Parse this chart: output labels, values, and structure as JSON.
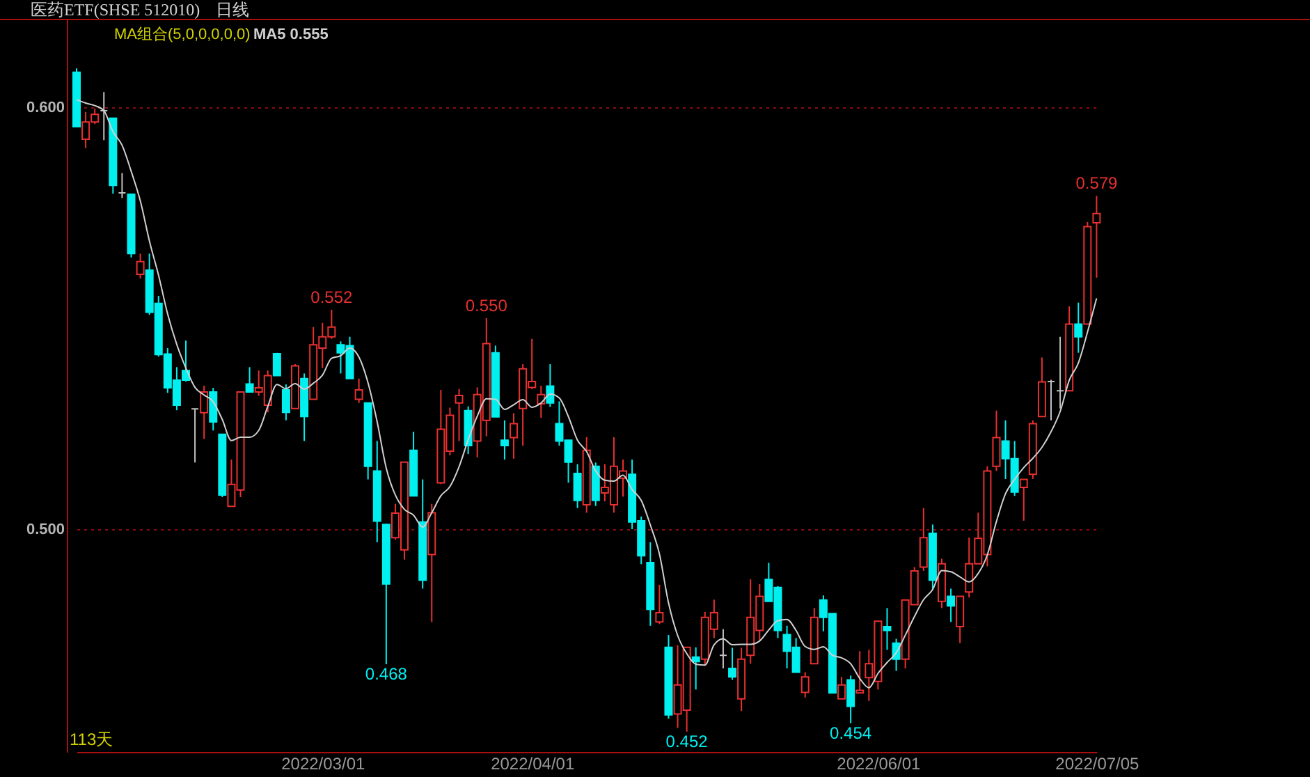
{
  "chart_data": {
    "type": "candlestick",
    "title": "医药ETF(SHSE 512010)",
    "subtitle": "日线",
    "legend_title": "MA组合(5,0,0,0,0,0)",
    "legend": "top left",
    "grid": "y",
    "ylim": [
      0.4472,
      0.6208
    ],
    "yticks": [
      {
        "value": 0.6,
        "label": "0.600"
      },
      {
        "value": 0.5,
        "label": "0.500"
      }
    ],
    "categories": [
      null,
      null,
      null,
      null,
      null,
      null,
      null,
      null,
      null,
      null,
      null,
      null,
      null,
      null,
      null,
      null,
      null,
      null,
      null,
      null,
      null,
      null,
      null,
      null,
      null,
      null,
      null,
      "2022/03/01",
      null,
      null,
      null,
      null,
      null,
      null,
      null,
      null,
      null,
      null,
      null,
      null,
      null,
      null,
      null,
      null,
      null,
      null,
      null,
      null,
      null,
      null,
      "2022/04/01",
      null,
      null,
      null,
      null,
      null,
      null,
      null,
      null,
      null,
      null,
      null,
      null,
      null,
      null,
      null,
      null,
      null,
      null,
      null,
      null,
      null,
      null,
      null,
      null,
      null,
      null,
      null,
      null,
      null,
      null,
      null,
      null,
      null,
      null,
      null,
      null,
      null,
      "2022/06/01",
      null,
      null,
      null,
      null,
      null,
      null,
      null,
      null,
      null,
      null,
      null,
      null,
      null,
      null,
      null,
      null,
      null,
      null,
      null,
      null,
      null,
      null,
      null,
      "2022/07/05"
    ],
    "ohlc": [
      [
        0.6083,
        0.6092,
        0.5954,
        0.5954
      ],
      [
        0.5924,
        0.5989,
        0.5903,
        0.5965
      ],
      [
        0.5965,
        0.5997,
        0.596,
        0.5983
      ],
      [
        0.5992,
        0.6036,
        0.5922,
        0.5992
      ],
      [
        0.5974,
        0.5974,
        0.5795,
        0.5815
      ],
      [
        0.5797,
        0.5844,
        0.5785,
        0.5797
      ],
      [
        0.5794,
        0.5794,
        0.5644,
        0.5653
      ],
      [
        0.5604,
        0.5653,
        0.5594,
        0.5634
      ],
      [
        0.5614,
        0.5653,
        0.5508,
        0.5514
      ],
      [
        0.5535,
        0.5553,
        0.5409,
        0.5414
      ],
      [
        0.5415,
        0.5429,
        0.5323,
        0.5335
      ],
      [
        0.5353,
        0.5384,
        0.5282,
        0.5294
      ],
      [
        0.5376,
        0.5447,
        0.535,
        0.5353
      ],
      [
        0.5285,
        0.5285,
        0.5158,
        0.5285
      ],
      [
        0.5276,
        0.534,
        0.5214,
        0.5325
      ],
      [
        0.5325,
        0.5335,
        0.5234,
        0.5254
      ],
      [
        0.5225,
        0.5225,
        0.5076,
        0.5081
      ],
      [
        0.5054,
        0.5165,
        0.5054,
        0.5106
      ],
      [
        0.5093,
        0.5326,
        0.5076,
        0.5325
      ],
      [
        0.5344,
        0.5384,
        0.5325,
        0.5325
      ],
      [
        0.5325,
        0.5376,
        0.5316,
        0.5335
      ],
      [
        0.5294,
        0.5376,
        0.5277,
        0.5364
      ],
      [
        0.5416,
        0.5418,
        0.5364,
        0.5364
      ],
      [
        0.533,
        0.5343,
        0.5258,
        0.5277
      ],
      [
        0.5286,
        0.5391,
        0.5286,
        0.5387
      ],
      [
        0.5357,
        0.5369,
        0.5209,
        0.5267
      ],
      [
        0.5308,
        0.5479,
        0.5308,
        0.5437
      ],
      [
        0.5429,
        0.5489,
        0.5382,
        0.5456
      ],
      [
        0.5456,
        0.552,
        0.5451,
        0.5479
      ],
      [
        0.5437,
        0.5445,
        0.5369,
        0.5418
      ],
      [
        0.5435,
        0.5456,
        0.5357,
        0.5357
      ],
      [
        0.5308,
        0.5357,
        0.5299,
        0.533
      ],
      [
        0.5299,
        0.5299,
        0.5118,
        0.5149
      ],
      [
        0.5138,
        0.5209,
        0.4969,
        0.5019
      ],
      [
        0.5011,
        0.5013,
        0.468,
        0.487
      ],
      [
        0.498,
        0.506,
        0.4975,
        0.5038
      ],
      [
        0.4951,
        0.5159,
        0.4928,
        0.5159
      ],
      [
        0.5187,
        0.5231,
        0.5079,
        0.5079
      ],
      [
        0.5017,
        0.5118,
        0.4859,
        0.4879
      ],
      [
        0.494,
        0.506,
        0.478,
        0.5039
      ],
      [
        0.511,
        0.533,
        0.5107,
        0.5237
      ],
      [
        0.5185,
        0.5288,
        0.5175,
        0.527
      ],
      [
        0.5299,
        0.5332,
        0.5209,
        0.5317
      ],
      [
        0.5281,
        0.5291,
        0.5178,
        0.5198
      ],
      [
        0.5209,
        0.5336,
        0.517,
        0.5319
      ],
      [
        0.5258,
        0.55,
        0.522,
        0.544
      ],
      [
        0.5418,
        0.5435,
        0.5266,
        0.5266
      ],
      [
        0.5211,
        0.5258,
        0.5165,
        0.5198
      ],
      [
        0.5217,
        0.5275,
        0.5167,
        0.525
      ],
      [
        0.5286,
        0.5391,
        0.5198,
        0.538
      ],
      [
        0.5336,
        0.5451,
        0.5332,
        0.535
      ],
      [
        0.5297,
        0.534,
        0.5264,
        0.5319
      ],
      [
        0.5339,
        0.5391,
        0.529,
        0.5299
      ],
      [
        0.525,
        0.5303,
        0.5198,
        0.5209
      ],
      [
        0.5211,
        0.5211,
        0.511,
        0.5159
      ],
      [
        0.5132,
        0.5154,
        0.505,
        0.5068
      ],
      [
        0.5058,
        0.5218,
        0.5039,
        0.5187
      ],
      [
        0.5149,
        0.5158,
        0.5055,
        0.5068
      ],
      [
        0.5086,
        0.5154,
        0.5066,
        0.5099
      ],
      [
        0.5058,
        0.5218,
        0.5039,
        0.5149
      ],
      [
        0.5121,
        0.5165,
        0.5077,
        0.5138
      ],
      [
        0.513,
        0.5165,
        0.5,
        0.5017
      ],
      [
        0.502,
        0.503,
        0.4917,
        0.4937
      ],
      [
        0.4921,
        0.4969,
        0.4771,
        0.481
      ],
      [
        0.478,
        0.4868,
        0.4775,
        0.4802
      ],
      [
        0.472,
        0.4749,
        0.4551,
        0.456
      ],
      [
        0.4562,
        0.4725,
        0.4529,
        0.4631
      ],
      [
        0.4571,
        0.472,
        0.452,
        0.472
      ],
      [
        0.4697,
        0.472,
        0.462,
        0.4686
      ],
      [
        0.4692,
        0.4804,
        0.4676,
        0.4791
      ],
      [
        0.4763,
        0.4833,
        0.4742,
        0.4802
      ],
      [
        0.4701,
        0.4763,
        0.467,
        0.4701
      ],
      [
        0.467,
        0.4719,
        0.4643,
        0.465
      ],
      [
        0.4598,
        0.4719,
        0.4569,
        0.4692
      ],
      [
        0.4701,
        0.4881,
        0.4681,
        0.4791
      ],
      [
        0.476,
        0.487,
        0.4737,
        0.4841
      ],
      [
        0.4881,
        0.492,
        0.4829,
        0.4829
      ],
      [
        0.4862,
        0.4865,
        0.4742,
        0.476
      ],
      [
        0.475,
        0.4771,
        0.467,
        0.4711
      ],
      [
        0.472,
        0.4742,
        0.4661,
        0.4661
      ],
      [
        0.4613,
        0.4661,
        0.4601,
        0.465
      ],
      [
        0.4681,
        0.4813,
        0.4681,
        0.4791
      ],
      [
        0.4832,
        0.4843,
        0.4758,
        0.4791
      ],
      [
        0.48,
        0.48,
        0.4612,
        0.4612
      ],
      [
        0.4598,
        0.465,
        0.4598,
        0.4631
      ],
      [
        0.4643,
        0.4653,
        0.454,
        0.458
      ],
      [
        0.4612,
        0.4711,
        0.4612,
        0.4618
      ],
      [
        0.4648,
        0.4714,
        0.4593,
        0.4681
      ],
      [
        0.4639,
        0.4782,
        0.462,
        0.4782
      ],
      [
        0.4769,
        0.4813,
        0.4714,
        0.476
      ],
      [
        0.473,
        0.474,
        0.4664,
        0.4692
      ],
      [
        0.4692,
        0.4832,
        0.467,
        0.4832
      ],
      [
        0.4821,
        0.491,
        0.4821,
        0.4901
      ],
      [
        0.491,
        0.505,
        0.4901,
        0.498
      ],
      [
        0.499,
        0.5011,
        0.4857,
        0.4879
      ],
      [
        0.4829,
        0.493,
        0.4813,
        0.4918
      ],
      [
        0.4841,
        0.4859,
        0.478,
        0.4818
      ],
      [
        0.4769,
        0.4841,
        0.473,
        0.4841
      ],
      [
        0.4851,
        0.498,
        0.4838,
        0.4918
      ],
      [
        0.4918,
        0.5039,
        0.4918,
        0.4978
      ],
      [
        0.494,
        0.5149,
        0.4912,
        0.5138
      ],
      [
        0.5149,
        0.5281,
        0.5138,
        0.5217
      ],
      [
        0.5209,
        0.5258,
        0.5119,
        0.5167
      ],
      [
        0.5167,
        0.5209,
        0.5079,
        0.5088
      ],
      [
        0.5099,
        0.5118,
        0.502,
        0.5118
      ],
      [
        0.513,
        0.5258,
        0.5119,
        0.525
      ],
      [
        0.5267,
        0.5407,
        0.5267,
        0.5349
      ],
      [
        0.535,
        0.5354,
        0.5258,
        0.535
      ],
      [
        0.5328,
        0.5456,
        0.5286,
        0.5328
      ],
      [
        0.5328,
        0.5528,
        0.5328,
        0.5486
      ],
      [
        0.5486,
        0.5537,
        0.5418,
        0.5456
      ],
      [
        0.5486,
        0.5728,
        0.5486,
        0.5717
      ],
      [
        0.5726,
        0.579,
        0.5596,
        0.5748
      ]
    ],
    "colors": [
      "#00f0f0",
      "#e83030",
      "#e83030",
      "#c0c0c0",
      "#00f0f0",
      "#c0c0c0",
      "#00f0f0",
      "#e83030",
      "#00f0f0",
      "#00f0f0",
      "#00f0f0",
      "#00f0f0",
      "#00f0f0",
      "#c0c0c0",
      "#e83030",
      "#00f0f0",
      "#00f0f0",
      "#e83030",
      "#e83030",
      "#00f0f0",
      "#e83030",
      "#e83030",
      "#00f0f0",
      "#00f0f0",
      "#e83030",
      "#00f0f0",
      "#e83030",
      "#e83030",
      "#e83030",
      "#00f0f0",
      "#00f0f0",
      "#e83030",
      "#00f0f0",
      "#00f0f0",
      "#00f0f0",
      "#e83030",
      "#e83030",
      "#00f0f0",
      "#00f0f0",
      "#e83030",
      "#e83030",
      "#e83030",
      "#e83030",
      "#00f0f0",
      "#e83030",
      "#e83030",
      "#00f0f0",
      "#00f0f0",
      "#e83030",
      "#e83030",
      "#e83030",
      "#e83030",
      "#00f0f0",
      "#00f0f0",
      "#00f0f0",
      "#00f0f0",
      "#e83030",
      "#00f0f0",
      "#e83030",
      "#e83030",
      "#e83030",
      "#00f0f0",
      "#00f0f0",
      "#00f0f0",
      "#e83030",
      "#00f0f0",
      "#e83030",
      "#e83030",
      "#00f0f0",
      "#e83030",
      "#e83030",
      "#c0c0c0",
      "#00f0f0",
      "#e83030",
      "#e83030",
      "#e83030",
      "#00f0f0",
      "#00f0f0",
      "#00f0f0",
      "#00f0f0",
      "#e83030",
      "#e83030",
      "#00f0f0",
      "#00f0f0",
      "#e83030",
      "#00f0f0",
      "#e83030",
      "#e83030",
      "#e83030",
      "#00f0f0",
      "#00f0f0",
      "#e83030",
      "#e83030",
      "#e83030",
      "#00f0f0",
      "#e83030",
      "#00f0f0",
      "#e83030",
      "#e83030",
      "#e83030",
      "#e83030",
      "#e83030",
      "#00f0f0",
      "#00f0f0",
      "#e83030",
      "#e83030",
      "#e83030",
      "#c0c0c0",
      "#c0c0c0",
      "#e83030",
      "#00f0f0",
      "#e83030",
      "#e83030"
    ],
    "series": [
      {
        "type": "line",
        "name": "MA5 0.555",
        "color": "#d0d0d0",
        "values": [
          0.6018,
          0.601,
          0.6004,
          0.5992,
          0.5942,
          0.591,
          0.5848,
          0.5778,
          0.5683,
          0.5602,
          0.551,
          0.5438,
          0.5382,
          0.5336,
          0.5318,
          0.5302,
          0.526,
          0.521,
          0.5218,
          0.5218,
          0.5234,
          0.5291,
          0.5343,
          0.5333,
          0.5345,
          0.5332,
          0.5346,
          0.5365,
          0.5405,
          0.5411,
          0.5429,
          0.5408,
          0.5347,
          0.5255,
          0.5145,
          0.5081,
          0.5047,
          0.5033,
          0.5005,
          0.5039,
          0.5079,
          0.5101,
          0.5148,
          0.5212,
          0.5268,
          0.5309,
          0.5308,
          0.5284,
          0.5295,
          0.5307,
          0.5289,
          0.5299,
          0.532,
          0.5311,
          0.5267,
          0.5211,
          0.5184,
          0.5138,
          0.5116,
          0.5114,
          0.5128,
          0.5094,
          0.5068,
          0.501,
          0.4941,
          0.4825,
          0.4748,
          0.4705,
          0.468,
          0.4678,
          0.4726,
          0.474,
          0.4726,
          0.4727,
          0.4727,
          0.4735,
          0.4761,
          0.4783,
          0.4786,
          0.476,
          0.4722,
          0.4715,
          0.4721,
          0.4701,
          0.4695,
          0.4681,
          0.4646,
          0.4624,
          0.4658,
          0.4684,
          0.4707,
          0.4749,
          0.4793,
          0.4833,
          0.4857,
          0.4902,
          0.4899,
          0.4887,
          0.4875,
          0.4895,
          0.4939,
          0.5018,
          0.5084,
          0.5118,
          0.5146,
          0.5168,
          0.5194,
          0.5231,
          0.5279,
          0.5353,
          0.5394,
          0.5467,
          0.5547
        ]
      }
    ],
    "annotations": [
      {
        "text": "0.552",
        "y": 0.552
      },
      {
        "text": "0.550",
        "y": 0.55
      },
      {
        "text": "0.468",
        "y": 0.468
      },
      {
        "text": "0.452",
        "y": 0.452
      },
      {
        "text": "0.454",
        "y": 0.454
      },
      {
        "text": "0.579",
        "y": 0.579
      },
      "113天"
    ]
  }
}
